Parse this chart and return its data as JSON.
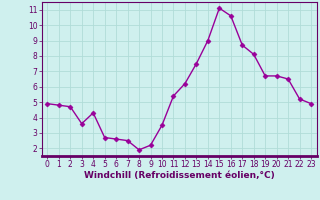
{
  "x": [
    0,
    1,
    2,
    3,
    4,
    5,
    6,
    7,
    8,
    9,
    10,
    11,
    12,
    13,
    14,
    15,
    16,
    17,
    18,
    19,
    20,
    21,
    22,
    23
  ],
  "y": [
    4.9,
    4.8,
    4.7,
    3.6,
    4.3,
    2.7,
    2.6,
    2.5,
    1.9,
    2.2,
    3.5,
    5.4,
    6.2,
    7.5,
    9.0,
    11.1,
    10.6,
    8.7,
    8.1,
    6.7,
    6.7,
    6.5,
    5.2,
    4.9
  ],
  "line_color": "#990099",
  "marker": "D",
  "markersize": 2.5,
  "linewidth": 1.0,
  "xlabel": "Windchill (Refroidissement éolien,°C)",
  "xlabel_fontsize": 6.5,
  "background_color": "#cff0ee",
  "grid_color": "#b0dcd8",
  "ylim": [
    1.5,
    11.5
  ],
  "xlim": [
    -0.5,
    23.5
  ],
  "yticks": [
    2,
    3,
    4,
    5,
    6,
    7,
    8,
    9,
    10,
    11
  ],
  "xticks": [
    0,
    1,
    2,
    3,
    4,
    5,
    6,
    7,
    8,
    9,
    10,
    11,
    12,
    13,
    14,
    15,
    16,
    17,
    18,
    19,
    20,
    21,
    22,
    23
  ],
  "tick_fontsize": 5.5,
  "tick_color": "#660066",
  "spine_color": "#660066",
  "xlabel_color": "#660066"
}
